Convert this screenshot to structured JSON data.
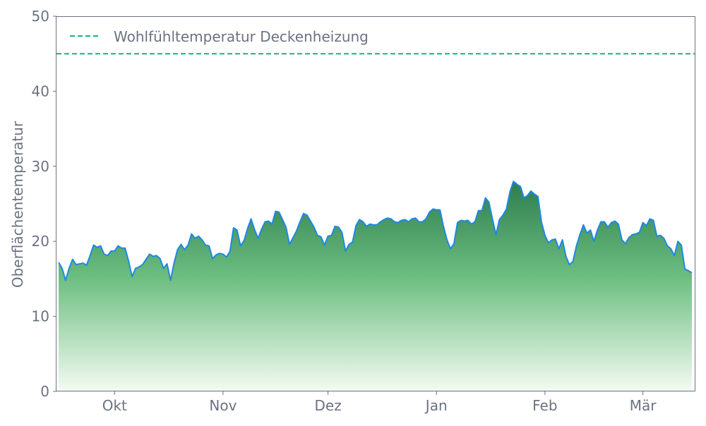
{
  "chart_data": {
    "type": "area",
    "title": "",
    "xlabel": "",
    "ylabel": "Oberflächentemperatur",
    "ylim": [
      0,
      50
    ],
    "yticks": [
      0,
      10,
      20,
      30,
      40,
      50
    ],
    "xticks": [
      {
        "date": "10-01",
        "label": "Okt"
      },
      {
        "date": "11-01",
        "label": "Nov"
      },
      {
        "date": "12-01",
        "label": "Dez"
      },
      {
        "date": "01-01",
        "label": "Jan"
      },
      {
        "date": "02-01",
        "label": "Feb"
      },
      {
        "date": "03-01",
        "label": "Mär"
      }
    ],
    "grid": false,
    "legend_position": "top-left",
    "reference_line": {
      "name": "Wohlfühltemperatur Deckenheizung",
      "value": 45,
      "color": "#10b981",
      "style": "dashed"
    },
    "series": [
      {
        "line_color": "#1e88e5",
        "fill_top_color": "#2e7d4f",
        "fill_bottom_color": "#f4fbf3",
        "x": [
          "09-15",
          "09-16",
          "09-17",
          "09-18",
          "09-19",
          "09-20",
          "09-21",
          "09-22",
          "09-23",
          "09-24",
          "09-25",
          "09-26",
          "09-27",
          "09-28",
          "09-29",
          "09-30",
          "10-01",
          "10-02",
          "10-03",
          "10-04",
          "10-05",
          "10-06",
          "10-07",
          "10-08",
          "10-09",
          "10-10",
          "10-11",
          "10-12",
          "10-13",
          "10-14",
          "10-15",
          "10-16",
          "10-17",
          "10-18",
          "10-19",
          "10-20",
          "10-21",
          "10-22",
          "10-23",
          "10-24",
          "10-25",
          "10-26",
          "10-27",
          "10-28",
          "10-29",
          "10-30",
          "10-31",
          "11-01",
          "11-02",
          "11-03",
          "11-04",
          "11-05",
          "11-06",
          "11-07",
          "11-08",
          "11-09",
          "11-10",
          "11-11",
          "11-12",
          "11-13",
          "11-14",
          "11-15",
          "11-16",
          "11-17",
          "11-18",
          "11-19",
          "11-20",
          "11-21",
          "11-22",
          "11-23",
          "11-24",
          "11-25",
          "11-26",
          "11-27",
          "11-28",
          "11-29",
          "11-30",
          "12-01",
          "12-02",
          "12-03",
          "12-04",
          "12-05",
          "12-06",
          "12-07",
          "12-08",
          "12-09",
          "12-10",
          "12-11",
          "12-12",
          "12-13",
          "12-14",
          "12-15",
          "12-16",
          "12-17",
          "12-18",
          "12-19",
          "12-20",
          "12-21",
          "12-22",
          "12-23",
          "12-24",
          "12-25",
          "12-26",
          "12-27",
          "12-28",
          "12-29",
          "12-30",
          "12-31",
          "01-01",
          "01-02",
          "01-03",
          "01-04",
          "01-05",
          "01-06",
          "01-07",
          "01-08",
          "01-09",
          "01-10",
          "01-11",
          "01-12",
          "01-13",
          "01-14",
          "01-15",
          "01-16",
          "01-17",
          "01-18",
          "01-19",
          "01-20",
          "01-21",
          "01-22",
          "01-23",
          "01-24",
          "01-25",
          "01-26",
          "01-27",
          "01-28",
          "01-29",
          "01-30",
          "01-31",
          "02-01",
          "02-02",
          "02-03",
          "02-04",
          "02-05",
          "02-06",
          "02-07",
          "02-08",
          "02-09",
          "02-10",
          "02-11",
          "02-12",
          "02-13",
          "02-14",
          "02-15",
          "02-16",
          "02-17",
          "02-18",
          "02-19",
          "02-20",
          "02-21",
          "02-22",
          "02-23",
          "02-24",
          "02-25",
          "02-26",
          "02-27",
          "02-28",
          "03-01",
          "03-02",
          "03-03",
          "03-04",
          "03-05",
          "03-06",
          "03-07",
          "03-08",
          "03-09",
          "03-10",
          "03-11",
          "03-12",
          "03-13",
          "03-14",
          "03-15"
        ],
        "values": [
          17.2,
          16.4,
          14.8,
          16.4,
          17.6,
          16.9,
          17.0,
          17.1,
          16.8,
          18.1,
          19.5,
          19.2,
          19.4,
          18.3,
          18.1,
          18.7,
          18.7,
          19.4,
          19.1,
          19.1,
          17.4,
          15.3,
          16.4,
          16.6,
          16.9,
          17.6,
          18.3,
          18.0,
          18.1,
          17.7,
          16.4,
          17.0,
          14.8,
          17.1,
          18.9,
          19.6,
          18.9,
          19.5,
          21.0,
          20.4,
          20.7,
          20.2,
          19.5,
          19.4,
          17.7,
          18.2,
          18.4,
          18.3,
          17.9,
          18.7,
          21.8,
          21.5,
          19.4,
          20.1,
          21.7,
          23.0,
          21.6,
          20.4,
          21.6,
          22.6,
          22.7,
          22.3,
          24.0,
          23.9,
          22.9,
          21.9,
          19.6,
          20.5,
          21.4,
          22.6,
          23.7,
          23.5,
          22.7,
          21.9,
          20.8,
          20.6,
          19.5,
          20.7,
          20.8,
          22.0,
          21.9,
          21.2,
          18.7,
          19.6,
          19.9,
          22.1,
          22.9,
          22.6,
          22.0,
          22.3,
          22.2,
          22.2,
          22.6,
          22.9,
          23.1,
          23.0,
          22.6,
          22.5,
          22.8,
          22.9,
          22.6,
          23.0,
          23.1,
          22.6,
          22.6,
          23.0,
          23.9,
          24.3,
          24.2,
          24.2,
          22.0,
          20.2,
          19.0,
          19.7,
          22.5,
          22.8,
          22.7,
          22.8,
          22.3,
          22.6,
          24.1,
          24.1,
          25.8,
          25.2,
          23.0,
          20.9,
          22.9,
          23.5,
          24.3,
          26.6,
          28.0,
          27.6,
          27.3,
          25.8,
          26.1,
          26.7,
          26.3,
          26.0,
          22.6,
          20.8,
          19.8,
          20.2,
          20.3,
          19.0,
          20.2,
          18.0,
          16.9,
          17.3,
          19.4,
          20.9,
          22.2,
          21.1,
          21.5,
          20.0,
          21.5,
          22.6,
          22.6,
          21.9,
          22.5,
          22.7,
          22.3,
          20.2,
          19.7,
          20.5,
          20.9,
          21.0,
          21.2,
          22.5,
          22.1,
          23.0,
          22.8,
          20.7,
          20.8,
          20.4,
          19.4,
          19.0,
          18.1,
          20.0,
          19.5,
          16.3,
          16.1,
          15.8
        ]
      }
    ]
  }
}
